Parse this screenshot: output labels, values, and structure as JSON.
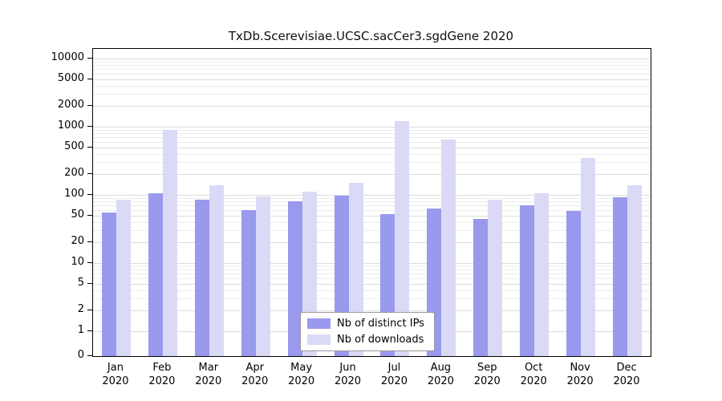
{
  "chart_data": {
    "type": "bar",
    "title": "TxDb.Scerevisiae.UCSC.sacCer3.sgdGene 2020",
    "year_label": "2020",
    "categories": [
      "Jan",
      "Feb",
      "Mar",
      "Apr",
      "May",
      "Jun",
      "Jul",
      "Aug",
      "Sep",
      "Oct",
      "Nov",
      "Dec"
    ],
    "series": [
      {
        "name": "Nb of distinct IPs",
        "color": "#9999ed",
        "values": [
          55,
          105,
          85,
          60,
          80,
          98,
          52,
          63,
          44,
          70,
          58,
          92
        ]
      },
      {
        "name": "Nb of downloads",
        "color": "#dadaf7",
        "values": [
          85,
          900,
          140,
          95,
          110,
          150,
          1200,
          650,
          85,
          105,
          350,
          140
        ]
      }
    ],
    "xlabel": "",
    "ylabel": "",
    "yscale": "log",
    "yticks": [
      0,
      1,
      2,
      5,
      10,
      20,
      50,
      100,
      200,
      500,
      1000,
      2000,
      5000,
      10000
    ],
    "ylim_top": 14000,
    "grid": "horizontal",
    "legend_position": "bottom-center-inside"
  }
}
